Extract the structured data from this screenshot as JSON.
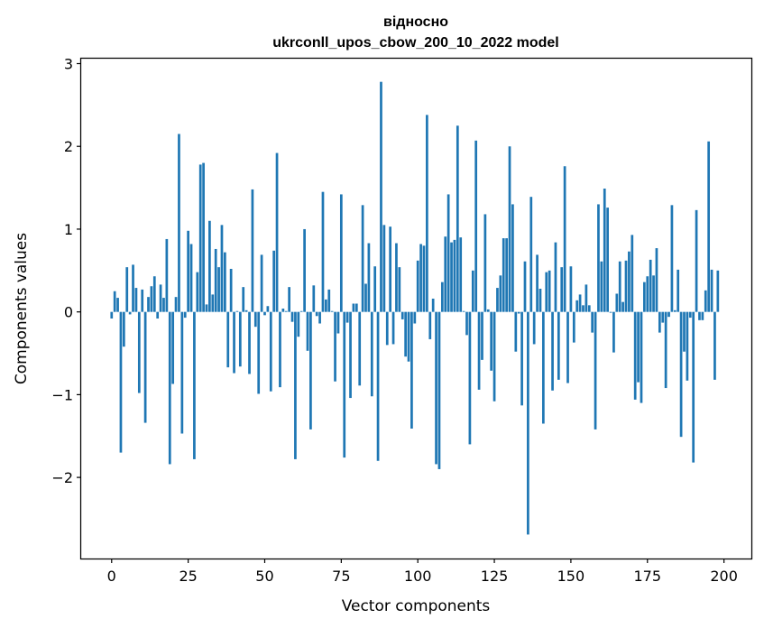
{
  "chart_data": {
    "type": "bar",
    "title_line1": "відносно",
    "title_line2": "ukrconll_upos_cbow_200_10_2022 model",
    "xlabel": "Vector components",
    "ylabel": "Components values",
    "xlim": [
      -9.95,
      208.95
    ],
    "ylim": [
      -2.98,
      3.06
    ],
    "xticks": [
      0,
      25,
      50,
      75,
      100,
      125,
      150,
      175,
      200
    ],
    "yticks": [
      -2,
      -1,
      0,
      1,
      2,
      3
    ],
    "ytick_labels": [
      "−2",
      "−1",
      "0",
      "1",
      "2",
      "3"
    ],
    "bar_color": "#1f77b4",
    "grid": false,
    "values": [
      -0.08,
      0.25,
      0.17,
      -1.7,
      -0.42,
      0.54,
      -0.03,
      0.57,
      0.29,
      -0.98,
      0.27,
      -1.34,
      0.18,
      0.31,
      0.43,
      -0.08,
      0.33,
      0.17,
      0.88,
      -1.84,
      -0.87,
      0.18,
      2.15,
      -1.47,
      -0.07,
      0.98,
      0.82,
      -1.78,
      0.48,
      1.78,
      1.8,
      0.09,
      1.1,
      0.21,
      0.76,
      0.54,
      1.05,
      0.72,
      -0.67,
      0.52,
      -0.74,
      0.01,
      -0.66,
      0.3,
      0.02,
      -0.75,
      1.48,
      -0.18,
      -0.99,
      0.69,
      -0.04,
      0.07,
      -0.96,
      0.74,
      1.92,
      -0.91,
      0.04,
      0.01,
      0.3,
      -0.12,
      -1.78,
      -0.3,
      0.01,
      1.0,
      -0.47,
      -1.42,
      0.32,
      -0.05,
      -0.14,
      1.45,
      0.15,
      0.27,
      0.01,
      -0.84,
      -0.26,
      1.42,
      -1.76,
      -0.13,
      -1.04,
      0.1,
      0.1,
      -0.89,
      1.29,
      0.34,
      0.83,
      -1.02,
      0.55,
      -1.8,
      2.78,
      1.05,
      -0.4,
      1.03,
      -0.39,
      0.83,
      0.54,
      -0.09,
      -0.54,
      -0.6,
      -1.41,
      -0.14,
      0.62,
      0.82,
      0.8,
      2.38,
      -0.33,
      0.16,
      -1.84,
      -1.9,
      0.36,
      0.91,
      1.42,
      0.84,
      0.87,
      2.25,
      0.9,
      0.01,
      -0.28,
      -1.6,
      0.5,
      2.07,
      -0.94,
      -0.58,
      1.18,
      0.03,
      -0.71,
      -1.08,
      0.29,
      0.44,
      0.89,
      0.89,
      2.0,
      1.3,
      -0.48,
      -0.02,
      -1.13,
      0.61,
      -2.69,
      1.39,
      -0.39,
      0.69,
      0.28,
      -1.35,
      0.48,
      0.5,
      -0.95,
      0.84,
      -0.82,
      0.54,
      1.76,
      -0.86,
      0.55,
      -0.37,
      0.14,
      0.21,
      0.08,
      0.33,
      0.08,
      -0.25,
      -1.42,
      1.3,
      0.61,
      1.49,
      1.26,
      -0.01,
      -0.49,
      0.22,
      0.61,
      0.12,
      0.62,
      0.73,
      0.93,
      -1.06,
      -0.85,
      -1.1,
      0.36,
      0.43,
      0.63,
      0.44,
      0.77,
      -0.25,
      -0.13,
      -0.92,
      -0.06,
      1.29,
      0.02,
      0.51,
      -1.51,
      -0.48,
      -0.83,
      -0.07,
      -1.82,
      1.23,
      -0.1,
      -0.1,
      0.26,
      2.06,
      0.51,
      -0.82,
      0.5
    ]
  }
}
